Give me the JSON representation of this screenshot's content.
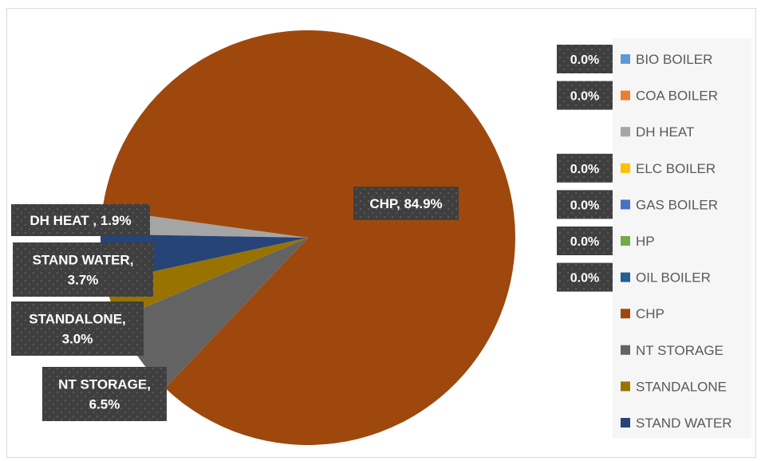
{
  "chart_data": {
    "type": "pie",
    "legend_position": "right",
    "categories": [
      "BIO BOILER",
      "COA BOILER",
      "DH HEAT",
      "ELC BOILER",
      "GAS BOILER",
      "HP",
      "OIL BOILER",
      "CHP",
      "NT STORAGE",
      "STANDALONE",
      "STAND WATER"
    ],
    "values": [
      0.0,
      0.0,
      1.9,
      0.0,
      0.0,
      0.0,
      0.0,
      84.9,
      6.5,
      3.0,
      3.7
    ],
    "colors": [
      "#5b9bd5",
      "#ed7d31",
      "#a5a5a5",
      "#ffc000",
      "#4472c4",
      "#70ad47",
      "#255e91",
      "#9e480e",
      "#636363",
      "#997300",
      "#264478"
    ],
    "slice_labels": {
      "CHP": [
        "CHP, 84.9%"
      ],
      "DH HEAT": [
        "DH HEAT , 1.9%"
      ],
      "STAND WATER": [
        "STAND WATER,",
        "3.7%"
      ],
      "STANDALONE": [
        "STANDALONE,",
        "3.0%"
      ],
      "NT STORAGE": [
        "NT STORAGE,",
        "6.5%"
      ]
    },
    "legend_value_labels": {
      "BIO BOILER": "0.0%",
      "COA BOILER": "0.0%",
      "ELC BOILER": "0.0%",
      "GAS BOILER": "0.0%",
      "HP": "0.0%",
      "OIL BOILER": "0.0%"
    }
  }
}
